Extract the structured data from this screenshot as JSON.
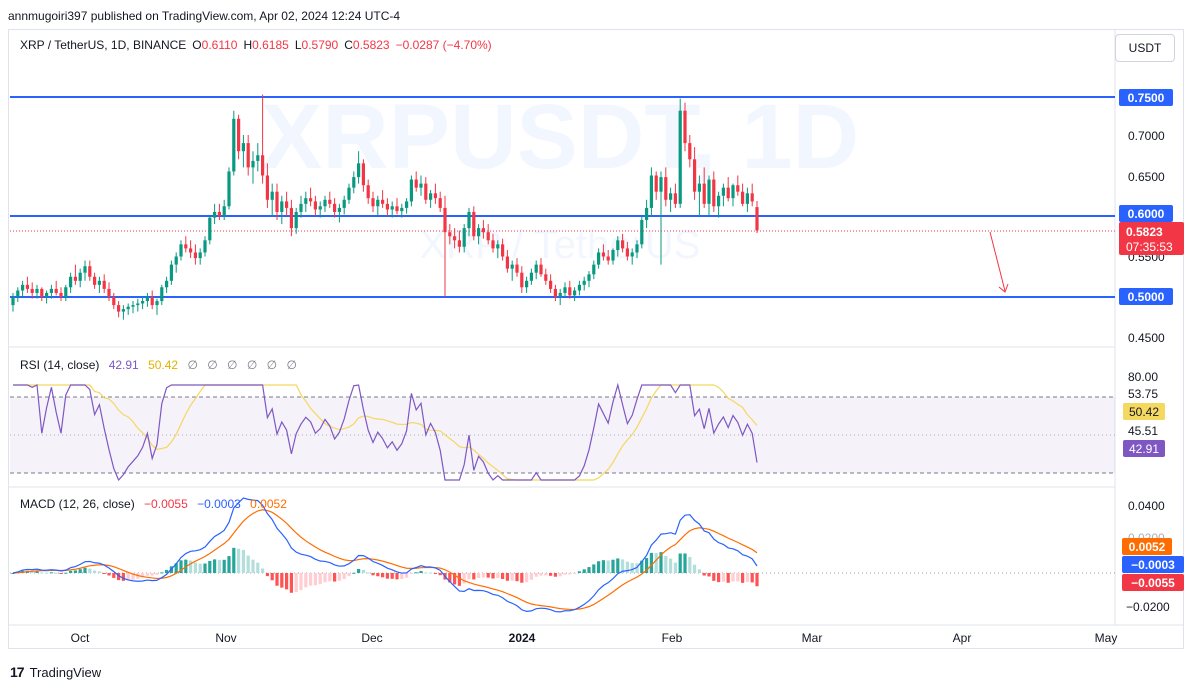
{
  "header": {
    "published_by": "annmugoiri397 published on TradingView.com, Apr 02, 2024 12:24 UTC-4"
  },
  "watermark": {
    "main": "XRPUSDT, 1D",
    "sub": "XRP / TetherUS"
  },
  "currency_button": "USDT",
  "price_legend": {
    "symbol": "XRP / TetherUS, 1D, BINANCE",
    "o_label": "O",
    "o": "0.6110",
    "h_label": "H",
    "h": "0.6185",
    "l_label": "L",
    "l": "0.5790",
    "c_label": "C",
    "c": "0.5823",
    "change": "−0.0287 (−4.70%)",
    "color_down": "#f23645"
  },
  "rsi_legend": {
    "title": "RSI (14, close)",
    "value": "42.91",
    "ma": "50.42",
    "extras": [
      "∅",
      "∅",
      "∅",
      "∅",
      "∅",
      "∅"
    ]
  },
  "macd_legend": {
    "title": "MACD (12, 26, close)",
    "histogram": "−0.0055",
    "macd": "−0.0003",
    "signal": "0.0052"
  },
  "price_axis": {
    "ticks": [
      "0.7000",
      "0.6500",
      "0.5500",
      "0.4500"
    ],
    "levels": [
      "0.7500",
      "0.6000",
      "0.5000"
    ],
    "current_price": "0.5823",
    "countdown": "07:35:53"
  },
  "rsi_axis": {
    "ticks": [
      "80.00",
      "53.75",
      "45.51"
    ],
    "ma_badge": "50.42",
    "rsi_badge": "42.91"
  },
  "macd_axis": {
    "ticks": [
      "0.0400",
      "0.0200",
      "−0.0200"
    ],
    "signal_badge": "0.0052",
    "macd_badge": "−0.0003",
    "hist_badge": "−0.0055"
  },
  "time_axis": [
    "Oct",
    "Nov",
    "Dec",
    "2024",
    "Feb",
    "Mar",
    "Apr",
    "May"
  ],
  "footer": {
    "brand": "TradingView"
  },
  "chart_data": {
    "type": "candlestick",
    "symbol": "XRP / TetherUS",
    "interval": "1D",
    "horizontal_levels": [
      0.75,
      0.6,
      0.5
    ],
    "price_range": [
      0.45,
      0.76
    ],
    "ohlc_daily_estimated": [
      [
        0.49,
        0.505,
        0.482,
        0.5
      ],
      [
        0.5,
        0.512,
        0.494,
        0.508
      ],
      [
        0.508,
        0.52,
        0.5,
        0.515
      ],
      [
        0.515,
        0.525,
        0.505,
        0.51
      ],
      [
        0.51,
        0.518,
        0.498,
        0.505
      ],
      [
        0.505,
        0.515,
        0.498,
        0.51
      ],
      [
        0.51,
        0.512,
        0.495,
        0.5
      ],
      [
        0.5,
        0.508,
        0.492,
        0.505
      ],
      [
        0.505,
        0.515,
        0.498,
        0.51
      ],
      [
        0.51,
        0.52,
        0.502,
        0.505
      ],
      [
        0.505,
        0.512,
        0.495,
        0.5
      ],
      [
        0.5,
        0.515,
        0.495,
        0.512
      ],
      [
        0.512,
        0.53,
        0.505,
        0.525
      ],
      [
        0.525,
        0.54,
        0.515,
        0.52
      ],
      [
        0.52,
        0.535,
        0.512,
        0.53
      ],
      [
        0.53,
        0.545,
        0.52,
        0.538
      ],
      [
        0.538,
        0.545,
        0.52,
        0.525
      ],
      [
        0.525,
        0.53,
        0.51,
        0.515
      ],
      [
        0.515,
        0.525,
        0.505,
        0.52
      ],
      [
        0.52,
        0.528,
        0.505,
        0.51
      ],
      [
        0.51,
        0.518,
        0.495,
        0.5
      ],
      [
        0.5,
        0.505,
        0.485,
        0.49
      ],
      [
        0.49,
        0.495,
        0.475,
        0.482
      ],
      [
        0.482,
        0.49,
        0.472,
        0.485
      ],
      [
        0.485,
        0.492,
        0.478,
        0.488
      ],
      [
        0.488,
        0.495,
        0.48,
        0.49
      ],
      [
        0.49,
        0.498,
        0.482,
        0.492
      ],
      [
        0.492,
        0.5,
        0.485,
        0.495
      ],
      [
        0.495,
        0.505,
        0.488,
        0.5
      ],
      [
        0.5,
        0.508,
        0.485,
        0.49
      ],
      [
        0.49,
        0.498,
        0.478,
        0.495
      ],
      [
        0.495,
        0.515,
        0.49,
        0.512
      ],
      [
        0.512,
        0.525,
        0.505,
        0.52
      ],
      [
        0.52,
        0.545,
        0.515,
        0.54
      ],
      [
        0.54,
        0.555,
        0.53,
        0.55
      ],
      [
        0.55,
        0.57,
        0.545,
        0.565
      ],
      [
        0.565,
        0.575,
        0.555,
        0.56
      ],
      [
        0.56,
        0.57,
        0.548,
        0.555
      ],
      [
        0.555,
        0.565,
        0.54,
        0.548
      ],
      [
        0.548,
        0.56,
        0.54,
        0.555
      ],
      [
        0.555,
        0.575,
        0.55,
        0.57
      ],
      [
        0.57,
        0.6,
        0.565,
        0.598
      ],
      [
        0.598,
        0.615,
        0.59,
        0.605
      ],
      [
        0.605,
        0.615,
        0.595,
        0.6
      ],
      [
        0.6,
        0.62,
        0.595,
        0.612
      ],
      [
        0.612,
        0.66,
        0.608,
        0.655
      ],
      [
        0.655,
        0.73,
        0.65,
        0.72
      ],
      [
        0.72,
        0.725,
        0.67,
        0.68
      ],
      [
        0.68,
        0.7,
        0.66,
        0.69
      ],
      [
        0.69,
        0.7,
        0.65,
        0.66
      ],
      [
        0.66,
        0.68,
        0.64,
        0.668
      ],
      [
        0.668,
        0.69,
        0.655,
        0.675
      ],
      [
        0.675,
        0.75,
        0.64,
        0.65
      ],
      [
        0.65,
        0.665,
        0.61,
        0.62
      ],
      [
        0.62,
        0.64,
        0.6,
        0.63
      ],
      [
        0.63,
        0.64,
        0.595,
        0.605
      ],
      [
        0.605,
        0.625,
        0.59,
        0.618
      ],
      [
        0.618,
        0.63,
        0.6,
        0.61
      ],
      [
        0.61,
        0.62,
        0.575,
        0.585
      ],
      [
        0.585,
        0.61,
        0.578,
        0.605
      ],
      [
        0.605,
        0.625,
        0.598,
        0.615
      ],
      [
        0.615,
        0.63,
        0.605,
        0.622
      ],
      [
        0.622,
        0.635,
        0.612,
        0.618
      ],
      [
        0.618,
        0.625,
        0.6,
        0.608
      ],
      [
        0.608,
        0.618,
        0.598,
        0.612
      ],
      [
        0.612,
        0.625,
        0.605,
        0.62
      ],
      [
        0.62,
        0.63,
        0.61,
        0.615
      ],
      [
        0.615,
        0.622,
        0.598,
        0.605
      ],
      [
        0.605,
        0.615,
        0.592,
        0.61
      ],
      [
        0.61,
        0.625,
        0.602,
        0.62
      ],
      [
        0.62,
        0.64,
        0.615,
        0.635
      ],
      [
        0.635,
        0.655,
        0.628,
        0.648
      ],
      [
        0.648,
        0.68,
        0.64,
        0.665
      ],
      [
        0.665,
        0.67,
        0.63,
        0.638
      ],
      [
        0.638,
        0.645,
        0.615,
        0.622
      ],
      [
        0.622,
        0.63,
        0.605,
        0.612
      ],
      [
        0.612,
        0.625,
        0.6,
        0.62
      ],
      [
        0.62,
        0.632,
        0.61,
        0.615
      ],
      [
        0.615,
        0.622,
        0.6,
        0.608
      ],
      [
        0.608,
        0.618,
        0.598,
        0.612
      ],
      [
        0.612,
        0.622,
        0.602,
        0.606
      ],
      [
        0.606,
        0.615,
        0.598,
        0.61
      ],
      [
        0.61,
        0.622,
        0.603,
        0.618
      ],
      [
        0.618,
        0.65,
        0.612,
        0.645
      ],
      [
        0.645,
        0.655,
        0.63,
        0.635
      ],
      [
        0.635,
        0.65,
        0.625,
        0.64
      ],
      [
        0.64,
        0.648,
        0.615,
        0.62
      ],
      [
        0.62,
        0.632,
        0.61,
        0.628
      ],
      [
        0.628,
        0.64,
        0.615,
        0.622
      ],
      [
        0.622,
        0.63,
        0.605,
        0.61
      ],
      [
        0.61,
        0.625,
        0.5,
        0.58
      ],
      [
        0.58,
        0.59,
        0.565,
        0.575
      ],
      [
        0.575,
        0.585,
        0.56,
        0.57
      ],
      [
        0.57,
        0.582,
        0.555,
        0.562
      ],
      [
        0.562,
        0.59,
        0.555,
        0.585
      ],
      [
        0.585,
        0.61,
        0.575,
        0.605
      ],
      [
        0.605,
        0.612,
        0.57,
        0.575
      ],
      [
        0.575,
        0.59,
        0.565,
        0.585
      ],
      [
        0.585,
        0.595,
        0.572,
        0.58
      ],
      [
        0.58,
        0.59,
        0.565,
        0.57
      ],
      [
        0.57,
        0.578,
        0.555,
        0.56
      ],
      [
        0.56,
        0.57,
        0.548,
        0.565
      ],
      [
        0.565,
        0.572,
        0.545,
        0.55
      ],
      [
        0.55,
        0.558,
        0.53,
        0.535
      ],
      [
        0.535,
        0.545,
        0.52,
        0.54
      ],
      [
        0.54,
        0.548,
        0.525,
        0.53
      ],
      [
        0.53,
        0.538,
        0.505,
        0.512
      ],
      [
        0.512,
        0.525,
        0.505,
        0.52
      ],
      [
        0.52,
        0.535,
        0.515,
        0.53
      ],
      [
        0.53,
        0.545,
        0.522,
        0.54
      ],
      [
        0.54,
        0.548,
        0.525,
        0.528
      ],
      [
        0.528,
        0.535,
        0.515,
        0.52
      ],
      [
        0.52,
        0.528,
        0.505,
        0.51
      ],
      [
        0.51,
        0.515,
        0.495,
        0.5
      ],
      [
        0.5,
        0.51,
        0.49,
        0.505
      ],
      [
        0.505,
        0.518,
        0.5,
        0.512
      ],
      [
        0.512,
        0.52,
        0.498,
        0.502
      ],
      [
        0.502,
        0.512,
        0.495,
        0.508
      ],
      [
        0.508,
        0.52,
        0.502,
        0.515
      ],
      [
        0.515,
        0.525,
        0.508,
        0.52
      ],
      [
        0.52,
        0.532,
        0.512,
        0.528
      ],
      [
        0.528,
        0.545,
        0.522,
        0.54
      ],
      [
        0.54,
        0.56,
        0.535,
        0.555
      ],
      [
        0.555,
        0.565,
        0.545,
        0.55
      ],
      [
        0.55,
        0.558,
        0.54,
        0.545
      ],
      [
        0.545,
        0.56,
        0.54,
        0.558
      ],
      [
        0.558,
        0.575,
        0.55,
        0.57
      ],
      [
        0.57,
        0.578,
        0.555,
        0.56
      ],
      [
        0.56,
        0.568,
        0.545,
        0.55
      ],
      [
        0.55,
        0.56,
        0.54,
        0.555
      ],
      [
        0.555,
        0.57,
        0.548,
        0.565
      ],
      [
        0.565,
        0.6,
        0.56,
        0.595
      ],
      [
        0.595,
        0.62,
        0.585,
        0.61
      ],
      [
        0.61,
        0.66,
        0.6,
        0.65
      ],
      [
        0.65,
        0.655,
        0.62,
        0.63
      ],
      [
        0.63,
        0.655,
        0.54,
        0.648
      ],
      [
        0.648,
        0.66,
        0.612,
        0.62
      ],
      [
        0.62,
        0.635,
        0.605,
        0.628
      ],
      [
        0.628,
        0.64,
        0.61,
        0.615
      ],
      [
        0.615,
        0.745,
        0.61,
        0.73
      ],
      [
        0.73,
        0.74,
        0.68,
        0.69
      ],
      [
        0.69,
        0.7,
        0.66,
        0.67
      ],
      [
        0.67,
        0.685,
        0.62,
        0.63
      ],
      [
        0.63,
        0.65,
        0.6,
        0.64
      ],
      [
        0.64,
        0.66,
        0.61,
        0.615
      ],
      [
        0.615,
        0.65,
        0.6,
        0.645
      ],
      [
        0.645,
        0.655,
        0.605,
        0.612
      ],
      [
        0.612,
        0.63,
        0.598,
        0.625
      ],
      [
        0.625,
        0.64,
        0.612,
        0.635
      ],
      [
        0.635,
        0.648,
        0.618,
        0.622
      ],
      [
        0.622,
        0.64,
        0.612,
        0.638
      ],
      [
        0.638,
        0.65,
        0.625,
        0.63
      ],
      [
        0.63,
        0.64,
        0.612,
        0.615
      ],
      [
        0.615,
        0.635,
        0.605,
        0.628
      ],
      [
        0.628,
        0.64,
        0.612,
        0.618
      ],
      [
        0.611,
        0.6185,
        0.579,
        0.5823
      ]
    ],
    "rsi": {
      "current": 42.91,
      "ma": 50.42,
      "band_upper": 53.75,
      "band_lower": 45.51,
      "scale_top": 80.0
    },
    "macd": {
      "histogram": -0.0055,
      "macd": -0.0003,
      "signal": 0.0052,
      "range": [
        -0.025,
        0.045
      ]
    },
    "time_labels": [
      "Oct",
      "Nov",
      "Dec",
      "2024",
      "Feb",
      "Mar",
      "Apr",
      "May"
    ],
    "colors": {
      "up": "#089981",
      "down": "#f23645",
      "level": "#2962ff",
      "rsi": "#7e57c2",
      "rsi_ma": "#f5d85f",
      "macd": "#2962ff",
      "signal": "#ff6d00"
    }
  }
}
